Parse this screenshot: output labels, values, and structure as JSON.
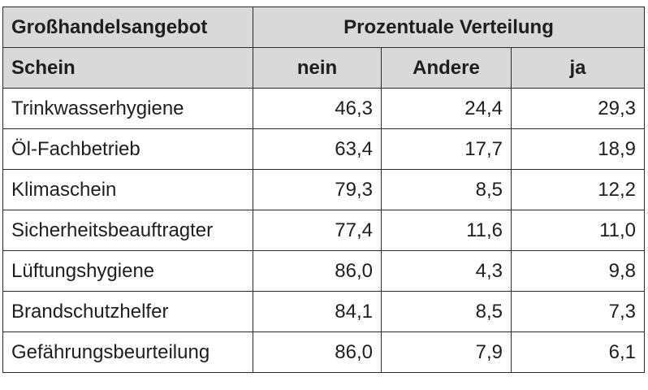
{
  "header": {
    "group_label": "Großhandelsangebot",
    "span_label": "Prozentuale Verteilung",
    "row_label": "Schein",
    "columns": [
      "nein",
      "Andere",
      "ja"
    ]
  },
  "rows": [
    {
      "label": "Trinkwasserhygiene",
      "values": [
        "46,3",
        "24,4",
        "29,3"
      ]
    },
    {
      "label": "Öl-Fachbetrieb",
      "values": [
        "63,4",
        "17,7",
        "18,9"
      ]
    },
    {
      "label": "Klimaschein",
      "values": [
        "79,3",
        "8,5",
        "12,2"
      ]
    },
    {
      "label": "Sicherheitsbeauftragter",
      "values": [
        "77,4",
        "11,6",
        "11,0"
      ]
    },
    {
      "label": "Lüftungshygiene",
      "values": [
        "86,0",
        "4,3",
        "9,8"
      ]
    },
    {
      "label": "Brandschutzhelfer",
      "values": [
        "84,1",
        "8,5",
        "7,3"
      ]
    },
    {
      "label": "Gefährungsbeurteilung",
      "values": [
        "86,0",
        "7,9",
        "6,1"
      ]
    }
  ],
  "colors": {
    "header_bg": "#d9d9d9",
    "border": "#2a2a2a",
    "text": "#1e1e1e"
  }
}
